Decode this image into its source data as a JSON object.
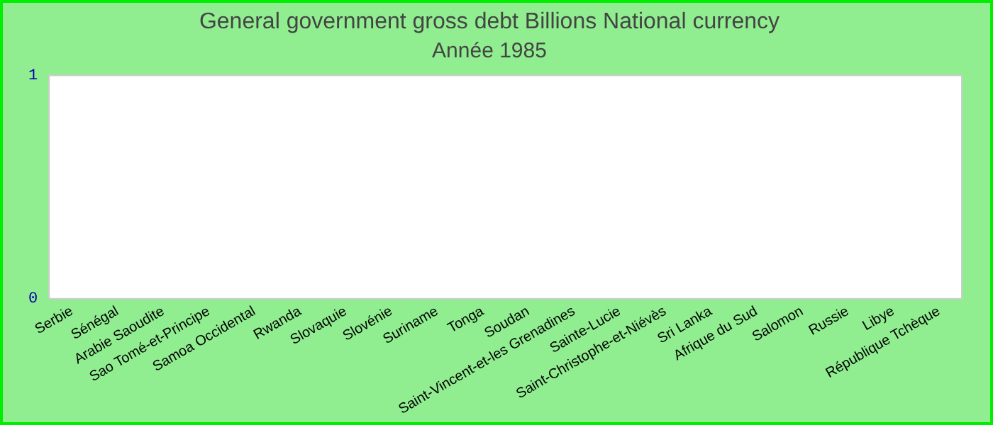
{
  "chart_data": {
    "type": "bar",
    "title": "General government gross debt Billions National currency",
    "subtitle": "Année 1985",
    "categories": [
      "Serbie",
      "Sénégal",
      "Arabie Saoudite",
      "Sao Tomé-et-Principe",
      "Samoa Occidental",
      "Rwanda",
      "Slovaquie",
      "Slovénie",
      "Suriname",
      "Tonga",
      "Soudan",
      "Saint-Vincent-et-les Grenadines",
      "Sainte-Lucie",
      "Saint-Christophe-et-Niévès",
      "Sri Lanka",
      "Afrique du Sud",
      "Salomon",
      "Russie",
      "Libye",
      "République Tchèque"
    ],
    "values": [
      null,
      null,
      null,
      null,
      null,
      null,
      null,
      null,
      null,
      null,
      null,
      null,
      null,
      null,
      null,
      null,
      null,
      null,
      null,
      null
    ],
    "ylim": [
      0,
      1
    ],
    "yticks": [
      0,
      1
    ],
    "grid": false,
    "legend": false
  }
}
